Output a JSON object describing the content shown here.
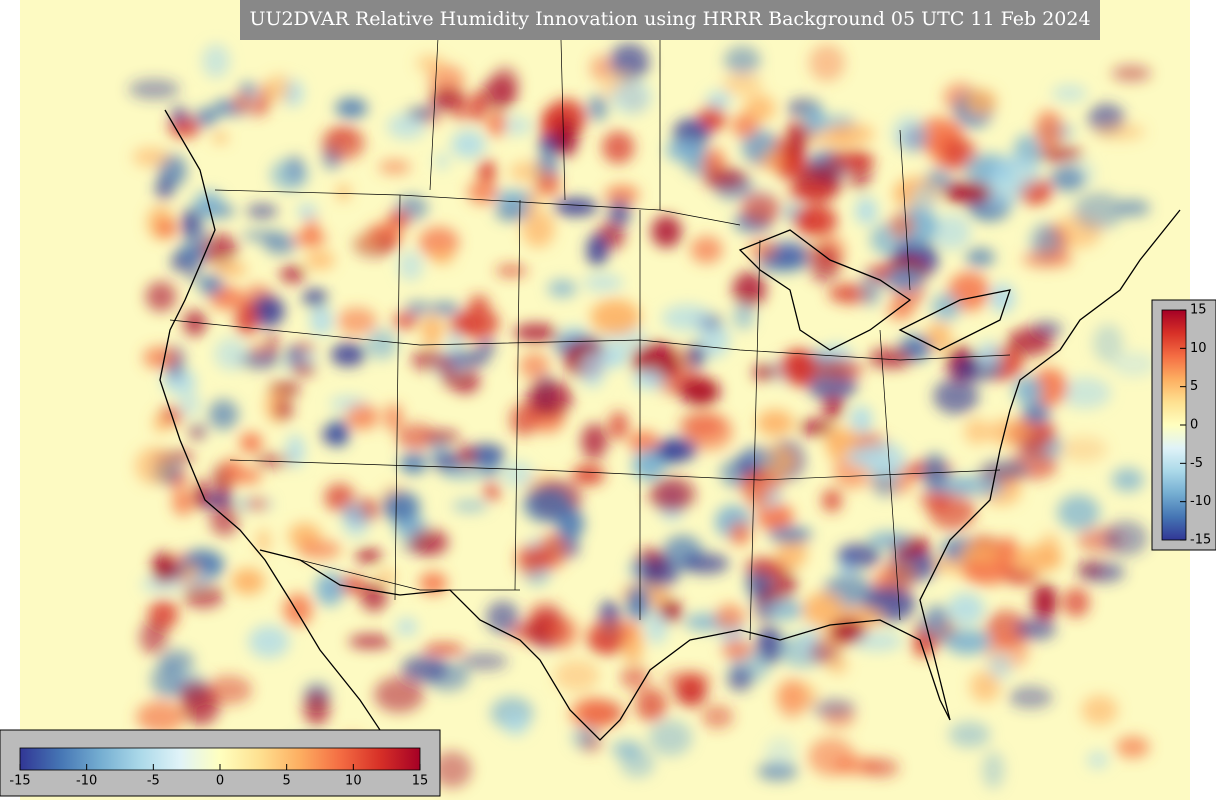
{
  "title": "UU2DVAR Relative Humidity Innovation using HRRR Background 05 UTC 11 Feb 2024",
  "colorbar_bottom": {
    "range": [
      -15,
      15
    ],
    "ticks": [
      -15,
      -10,
      -5,
      0,
      5,
      10,
      15
    ]
  },
  "colorbar_right": {
    "range": [
      -15,
      15
    ],
    "ticks": [
      15,
      10,
      5,
      0,
      -5,
      -10,
      -15
    ]
  }
}
